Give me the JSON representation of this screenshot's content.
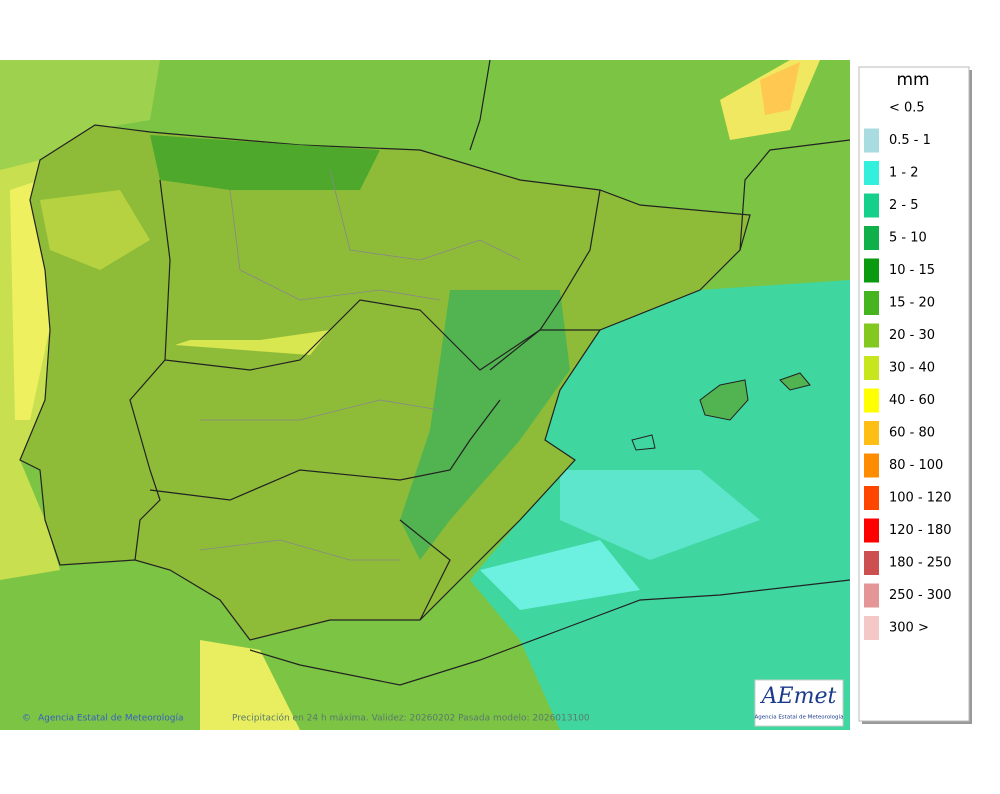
{
  "legend": {
    "title": "mm",
    "items": [
      {
        "label": "< 0.5"
      },
      {
        "label": "0.5 - 1",
        "color": "#a8dce0"
      },
      {
        "label": "1 - 2",
        "color": "#33f0dc"
      },
      {
        "label": "2 - 5",
        "color": "#14d08a"
      },
      {
        "label": "5 - 10",
        "color": "#0fb04a"
      },
      {
        "label": "10 - 15",
        "color": "#0a9a10"
      },
      {
        "label": "15 - 20",
        "color": "#46b41e"
      },
      {
        "label": "20 - 30",
        "color": "#82c81e"
      },
      {
        "label": "30 - 40",
        "color": "#c8e61e"
      },
      {
        "label": "40 - 60",
        "color": "#ffff00"
      },
      {
        "label": "60 - 80",
        "color": "#ffbe14"
      },
      {
        "label": "80 - 100",
        "color": "#ff8c00"
      },
      {
        "label": "100 - 120",
        "color": "#ff4600"
      },
      {
        "label": "120 - 180",
        "color": "#ff0000"
      },
      {
        "label": "180 - 250",
        "color": "#cd5050"
      },
      {
        "label": "250 - 300",
        "color": "#e49696"
      },
      {
        "label": "300 >",
        "color": "#f5c8c8"
      }
    ]
  },
  "footer": {
    "credit": "Agencia Estatal de Meteorología",
    "caption": "Precipitación en 24 h máxima. Validez: 20260202 Pasada modelo: 2026013100"
  },
  "logo": {
    "name": "AEmet",
    "subtitle": "Agencia Estatal de Meteorología"
  }
}
